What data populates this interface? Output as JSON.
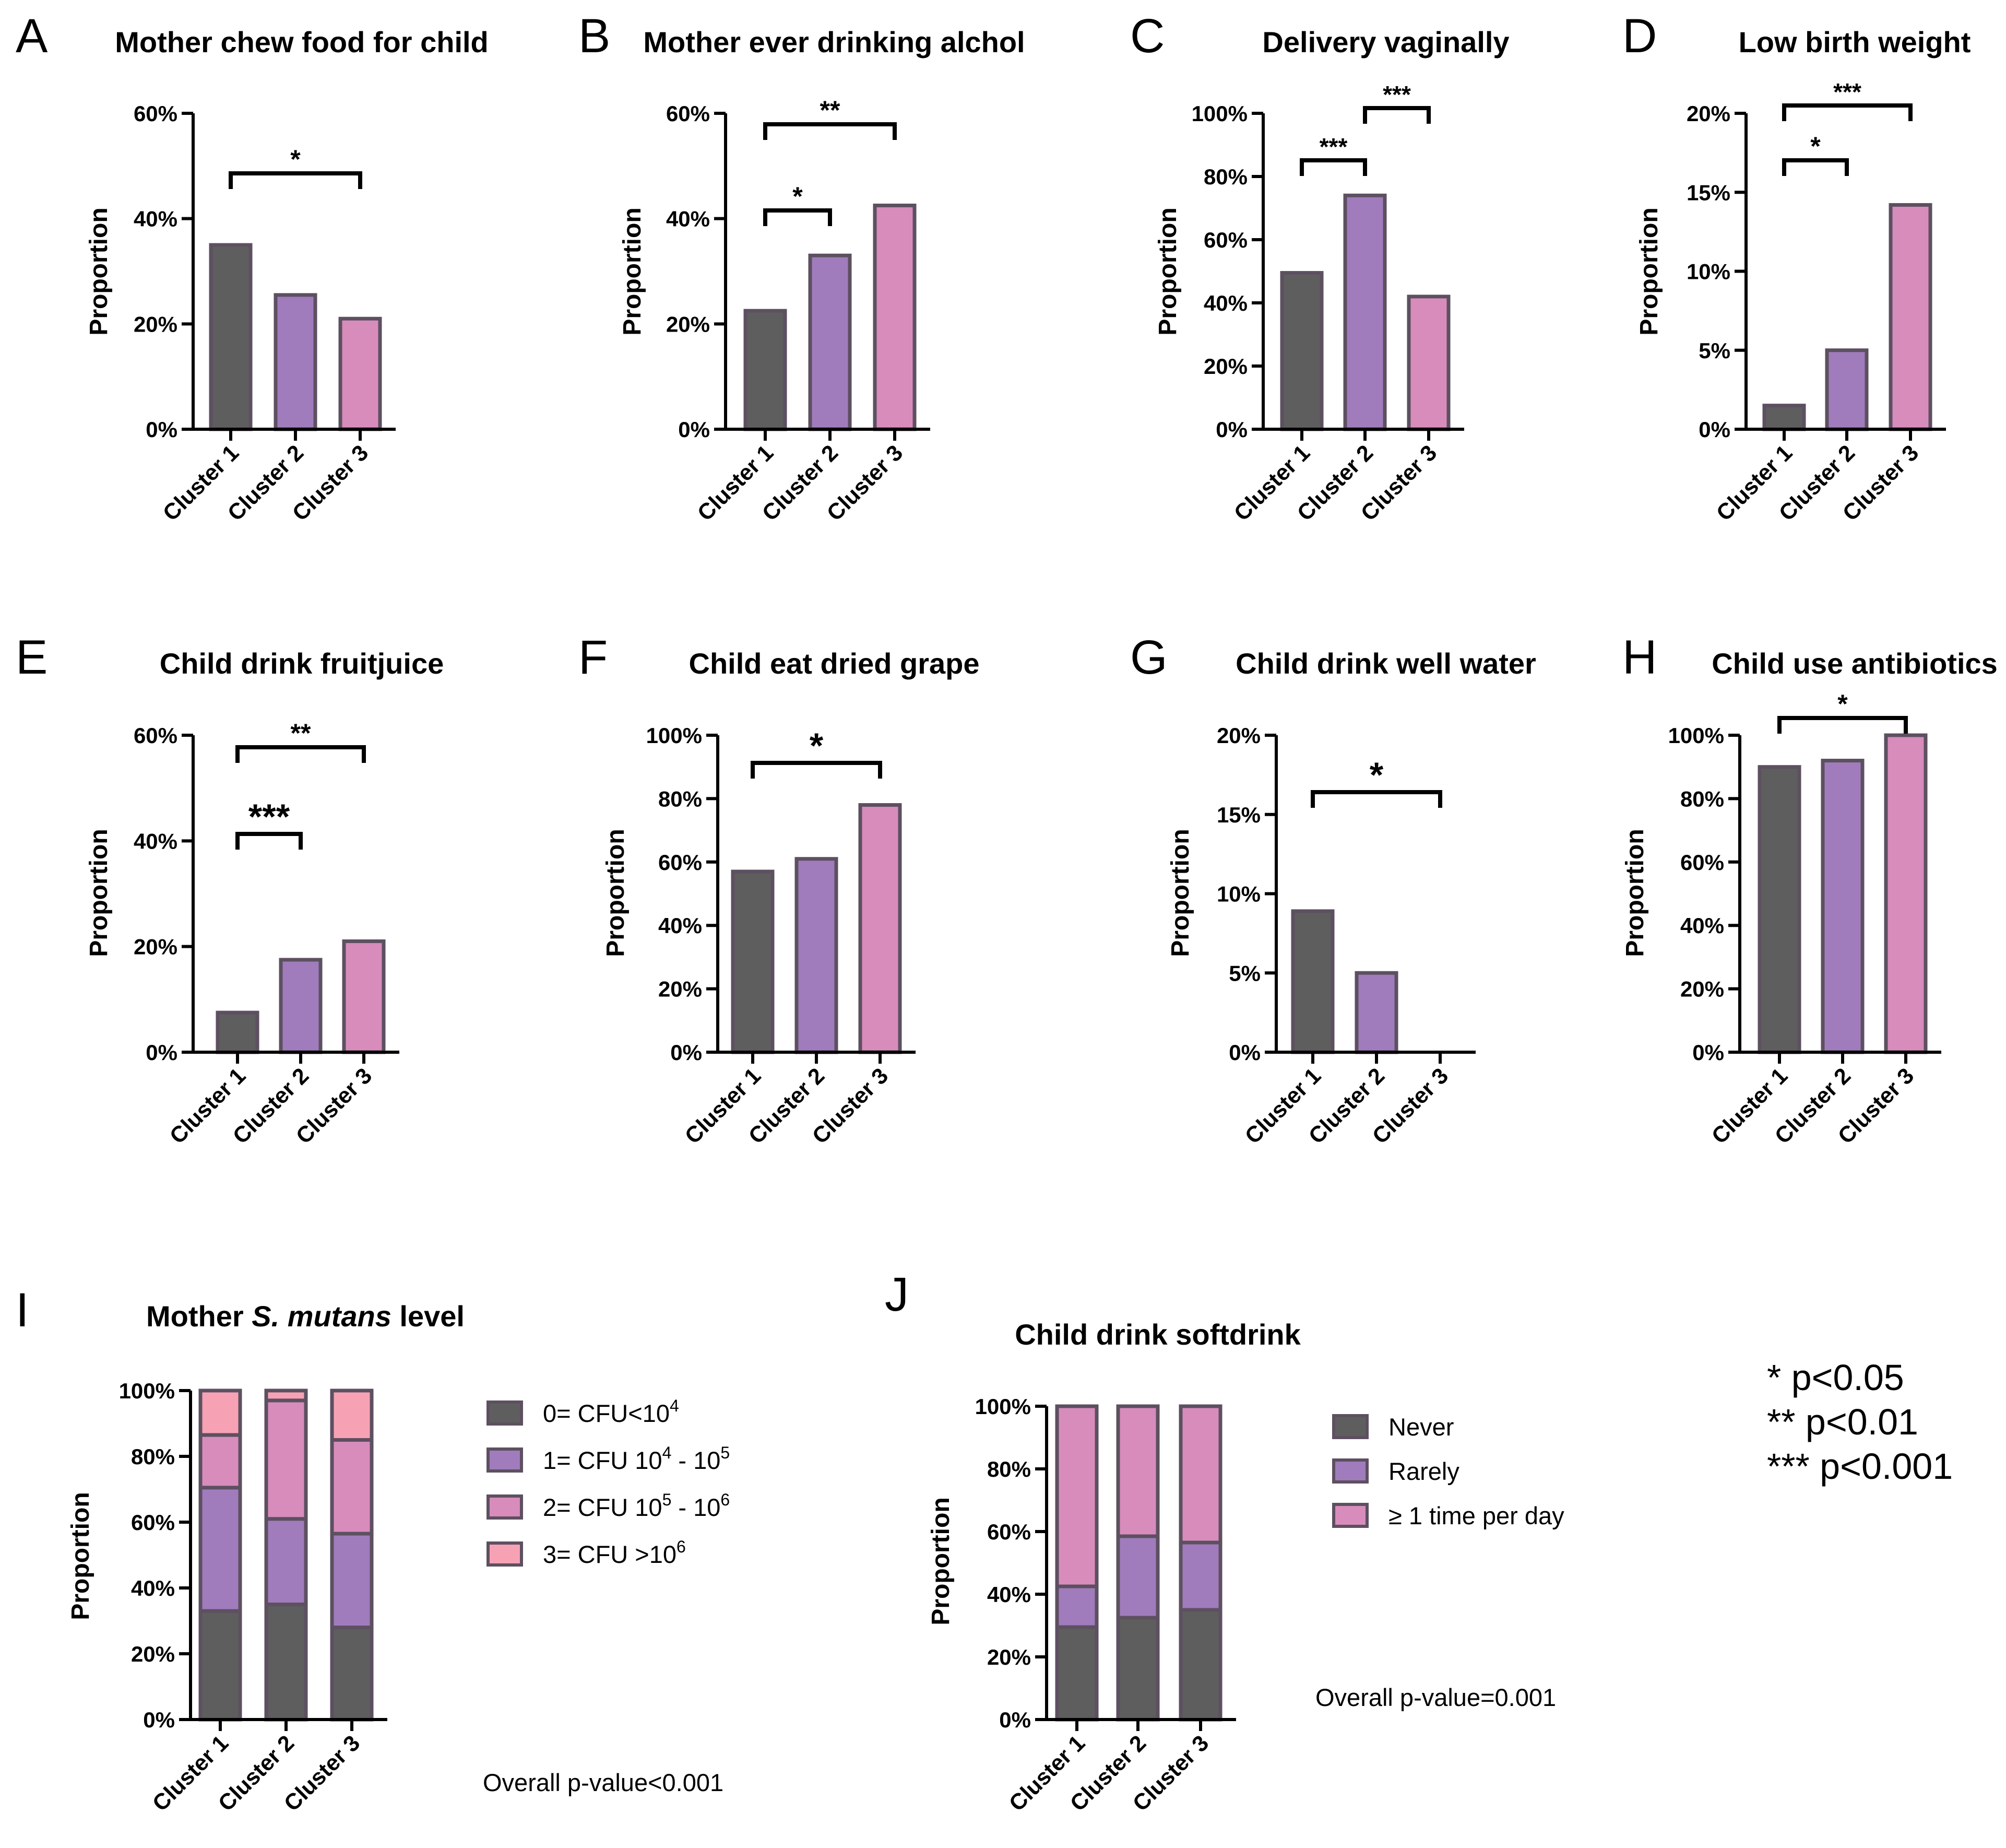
{
  "colors": {
    "cluster1": "#5e5e5e",
    "cluster2": "#a07cbc",
    "cluster3": "#d78cbc",
    "level3": "#f7a2b4",
    "edge": "#5d5060"
  },
  "significance_key": [
    "* p<0.05",
    "** p<0.01",
    "*** p<0.001"
  ],
  "chart_data": [
    {
      "panel": "A",
      "type": "bar",
      "title": "Mother chew food for child",
      "ylabel": "Proportion",
      "ylim": [
        0,
        60
      ],
      "yticks": [
        "0%",
        "20%",
        "40%",
        "60%"
      ],
      "categories": [
        "Cluster 1",
        "Cluster 2",
        "Cluster 3"
      ],
      "values": [
        35,
        25.5,
        21
      ],
      "brackets": [
        {
          "from": 1,
          "to": 3,
          "label": "*"
        }
      ]
    },
    {
      "panel": "B",
      "type": "bar",
      "title": "Mother ever drinking alchol",
      "ylabel": "Proportion",
      "ylim": [
        0,
        60
      ],
      "yticks": [
        "0%",
        "20%",
        "40%",
        "60%"
      ],
      "categories": [
        "Cluster 1",
        "Cluster 2",
        "Cluster 3"
      ],
      "values": [
        22.5,
        33,
        42.5
      ],
      "brackets": [
        {
          "from": 1,
          "to": 2,
          "label": "*"
        },
        {
          "from": 1,
          "to": 3,
          "label": "**"
        }
      ]
    },
    {
      "panel": "C",
      "type": "bar",
      "title": "Delivery vaginally",
      "ylabel": "Proportion",
      "ylim": [
        0,
        100
      ],
      "yticks": [
        "0%",
        "20%",
        "40%",
        "60%",
        "80%",
        "100%"
      ],
      "categories": [
        "Cluster 1",
        "Cluster 2",
        "Cluster 3"
      ],
      "values": [
        49.5,
        74,
        42
      ],
      "brackets": [
        {
          "from": 1,
          "to": 2,
          "label": "***"
        },
        {
          "from": 2,
          "to": 3,
          "label": "***"
        }
      ]
    },
    {
      "panel": "D",
      "type": "bar",
      "title": "Low birth weight",
      "ylabel": "Proportion",
      "ylim": [
        0,
        20
      ],
      "yticks": [
        "0%",
        "5%",
        "10%",
        "15%",
        "20%"
      ],
      "categories": [
        "Cluster 1",
        "Cluster 2",
        "Cluster 3"
      ],
      "values": [
        1.5,
        5,
        14.2
      ],
      "brackets": [
        {
          "from": 1,
          "to": 2,
          "label": "*"
        },
        {
          "from": 1,
          "to": 3,
          "label": "***"
        }
      ]
    },
    {
      "panel": "E",
      "type": "bar",
      "title": "Child drink fruitjuice",
      "ylabel": "Proportion",
      "ylim": [
        0,
        60
      ],
      "yticks": [
        "0%",
        "20%",
        "40%",
        "60%"
      ],
      "categories": [
        "Cluster 1",
        "Cluster 2",
        "Cluster 3"
      ],
      "values": [
        7.5,
        17.5,
        21
      ],
      "brackets": [
        {
          "from": 1,
          "to": 2,
          "label": "***"
        },
        {
          "from": 1,
          "to": 3,
          "label": "**"
        }
      ]
    },
    {
      "panel": "F",
      "type": "bar",
      "title": "Child eat dried grape",
      "ylabel": "Proportion",
      "ylim": [
        0,
        100
      ],
      "yticks": [
        "0%",
        "20%",
        "40%",
        "60%",
        "80%",
        "100%"
      ],
      "categories": [
        "Cluster 1",
        "Cluster 2",
        "Cluster 3"
      ],
      "values": [
        57,
        61,
        78
      ],
      "brackets": [
        {
          "from": 1,
          "to": 3,
          "label": "*"
        }
      ]
    },
    {
      "panel": "G",
      "type": "bar",
      "title": "Child drink well water",
      "ylabel": "Proportion",
      "ylim": [
        0,
        20
      ],
      "yticks": [
        "0%",
        "5%",
        "10%",
        "15%",
        "20%"
      ],
      "categories": [
        "Cluster 1",
        "Cluster 2",
        "Cluster 3"
      ],
      "values": [
        8.9,
        5,
        0
      ],
      "brackets": [
        {
          "from": 1,
          "to": 3,
          "label": "*"
        }
      ]
    },
    {
      "panel": "H",
      "type": "bar",
      "title": "Child use antibiotics",
      "ylabel": "Proportion",
      "ylim": [
        0,
        100
      ],
      "yticks": [
        "0%",
        "20%",
        "40%",
        "60%",
        "80%",
        "100%"
      ],
      "categories": [
        "Cluster 1",
        "Cluster 2",
        "Cluster 3"
      ],
      "values": [
        90,
        92,
        100
      ],
      "brackets": [
        {
          "from": 1,
          "to": 3,
          "label": "*"
        }
      ]
    },
    {
      "panel": "I",
      "type": "stacked-bar",
      "title_prefix": "Mother ",
      "title_italic": "S. mutans",
      "title_suffix": " level",
      "ylabel": "Proportion",
      "ylim": [
        0,
        100
      ],
      "yticks": [
        "0%",
        "20%",
        "40%",
        "60%",
        "80%",
        "100%"
      ],
      "categories": [
        "Cluster 1",
        "Cluster 2",
        "Cluster 3"
      ],
      "series": [
        {
          "name": "0= CFU<10^4",
          "values": [
            33,
            35,
            28
          ]
        },
        {
          "name": "1= CFU 10^4 - 10^5",
          "values": [
            37.5,
            26,
            28.5
          ]
        },
        {
          "name": "2= CFU 10^5 - 10^6",
          "values": [
            16,
            36,
            28.5
          ]
        },
        {
          "name": "3= CFU >10^6",
          "values": [
            13.5,
            3,
            15
          ]
        }
      ],
      "legend": [
        {
          "base": "0= CFU<10",
          "sup1": "4",
          "mid": "",
          "sup2": ""
        },
        {
          "base": "1= CFU 10",
          "sup1": "4",
          "mid": " - 10",
          "sup2": "5"
        },
        {
          "base": "2= CFU 10",
          "sup1": "5",
          "mid": " - 10",
          "sup2": "6"
        },
        {
          "base": "3= CFU >10",
          "sup1": "6",
          "mid": "",
          "sup2": ""
        }
      ],
      "overall_p": "Overall p-value<0.001"
    },
    {
      "panel": "J",
      "type": "stacked-bar",
      "title": "Child drink softdrink",
      "ylabel": "Proportion",
      "ylim": [
        0,
        100
      ],
      "yticks": [
        "0%",
        "20%",
        "40%",
        "60%",
        "80%",
        "100%"
      ],
      "categories": [
        "Cluster 1",
        "Cluster 2",
        "Cluster 3"
      ],
      "series": [
        {
          "name": "Never",
          "values": [
            29.5,
            32.5,
            35
          ]
        },
        {
          "name": "Rarely",
          "values": [
            13,
            26,
            21.5
          ]
        },
        {
          "name": "≥ 1 time per day",
          "values": [
            57.5,
            41.5,
            43.5
          ]
        }
      ],
      "overall_p": "Overall p-value=0.001"
    }
  ]
}
